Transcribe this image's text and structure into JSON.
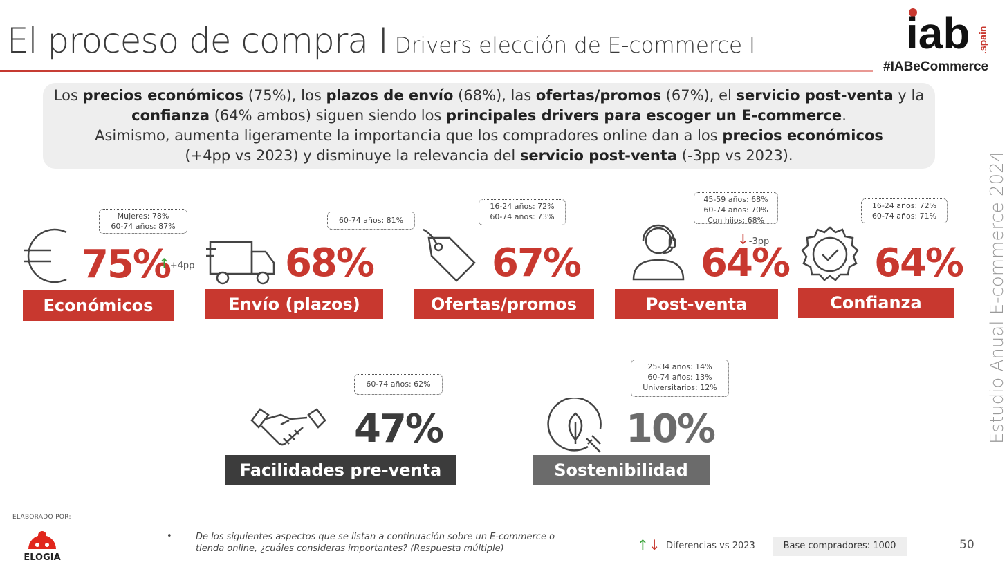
{
  "header": {
    "title": "El proceso de compra I",
    "subtitle": "Drivers elección de E-commerce I",
    "hashtag": "#IABeCommerce",
    "logo_main": "iab",
    "logo_sub": ".spain"
  },
  "side_text": "Estudio Anual E-commerce  2024",
  "summary": {
    "line1": [
      "Los ",
      "precios económicos",
      " (75%), los ",
      "plazos de envío",
      " (68%), las ",
      "ofertas/promos",
      " (67%), el ",
      "servicio post-venta",
      " y la"
    ],
    "line2": [
      "confianza",
      " (64% ambos) siguen siendo los ",
      "principales drivers para escoger un E-commerce",
      "."
    ],
    "line3": [
      "Asimismo, aumenta ligeramente la importancia que los compradores online dan a los ",
      "precios económicos"
    ],
    "line4": [
      "(+4pp vs 2023) y disminuye la relevancia del ",
      "servicio post-venta",
      " (-3pp vs 2023)."
    ]
  },
  "drivers": [
    {
      "label": "Económicos",
      "pct": "75%",
      "icon": "euro-icon",
      "bubble": [
        "Mujeres: 78%",
        "60-74 años: 87%"
      ],
      "delta": "+4pp",
      "delta_dir": "up"
    },
    {
      "label": "Envío (plazos)",
      "pct": "68%",
      "icon": "truck-icon",
      "bubble": [
        "60-74 años: 81%"
      ]
    },
    {
      "label": "Ofertas/promos",
      "pct": "67%",
      "icon": "price-tag-icon",
      "bubble": [
        "16-24 años: 72%",
        "60-74 años: 73%"
      ]
    },
    {
      "label": "Post-venta",
      "pct": "64%",
      "icon": "headset-icon",
      "bubble": [
        "45-59 años: 68%",
        "60-74 años: 70%",
        "Con hijos: 68%"
      ],
      "delta": "-3pp",
      "delta_dir": "down"
    },
    {
      "label": "Confianza",
      "pct": "64%",
      "icon": "badge-check-icon",
      "bubble": [
        "16-24 años: 72%",
        "60-74 años: 71%"
      ]
    },
    {
      "label": "Facilidades pre-venta",
      "pct": "47%",
      "icon": "handshake-icon",
      "bubble": [
        "60-74 años: 62%"
      ]
    },
    {
      "label": "Sostenibilidad",
      "pct": "10%",
      "icon": "leaf-plug-icon",
      "bubble": [
        "25-34 años: 14%",
        "60-74 años: 13%",
        "Universitarios: 12%"
      ]
    }
  ],
  "colors": {
    "accent": "#c8382f",
    "dark": "#3c3c3c",
    "gray": "#6b6b6b",
    "up": "#3aa33a",
    "down": "#c8382f"
  },
  "footer": {
    "elaborado_por": "ELABORADO POR:",
    "brand": "ELOGIA",
    "bullet": "•",
    "question": "De los siguientes aspectos que se listan a continuación sobre un E-commerce o tienda online, ¿cuáles consideras importantes? (Respuesta múltiple)",
    "legend_arrows": "↑↓",
    "legend": "Diferencias vs 2023",
    "base": "Base compradores: 1000",
    "page": "50"
  }
}
